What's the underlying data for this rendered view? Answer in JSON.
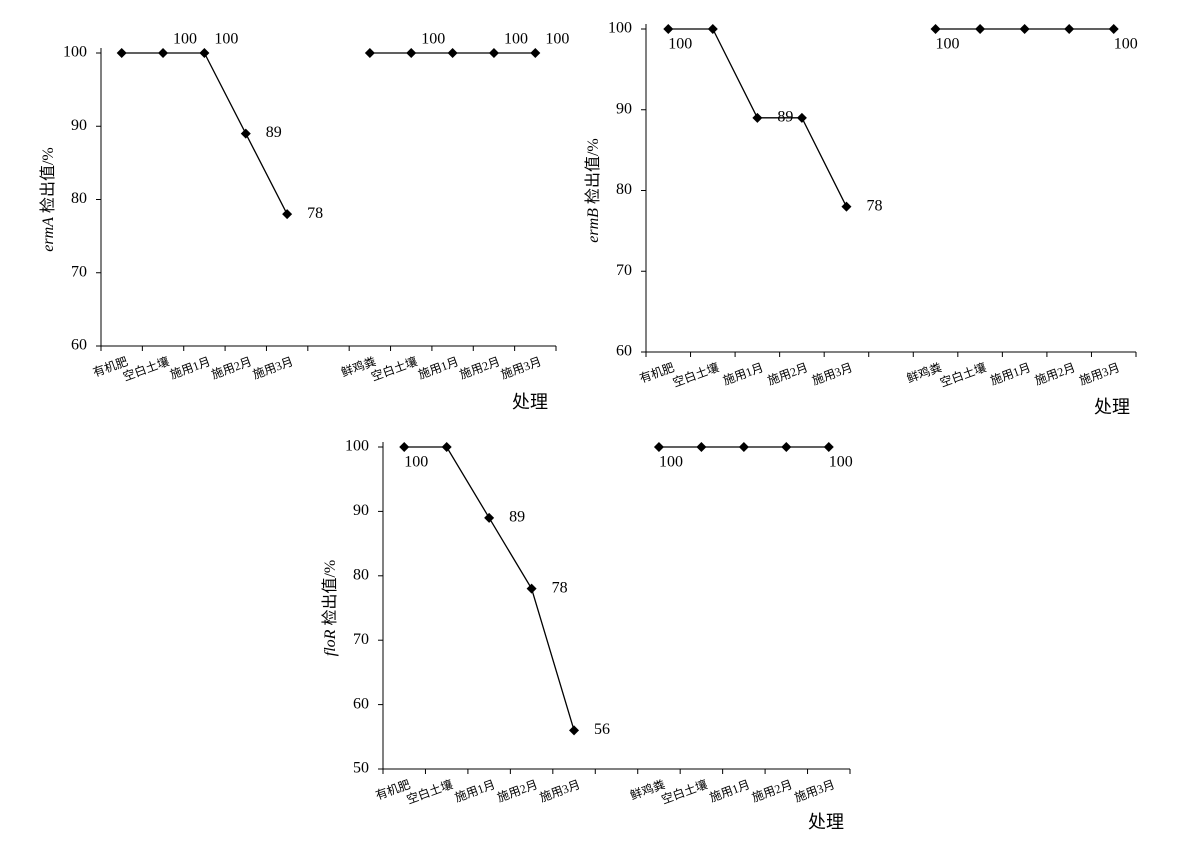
{
  "chart_data": [
    {
      "type": "line",
      "ylabel": {
        "gene": "ermA",
        "text": " 检出值/%"
      },
      "xlabel": "处理",
      "categories": [
        "有机肥",
        "空白土壤",
        "施用1月",
        "施用2月",
        "施用3月",
        null,
        "鲜鸡粪",
        "空白土壤",
        "施用1月",
        "施用2月",
        "施用3月"
      ],
      "series": [
        {
          "color": "#000000",
          "values": [
            100,
            100,
            100,
            89,
            78,
            null,
            100,
            100,
            100,
            100,
            100
          ],
          "value_labels": [
            null,
            "100",
            "100",
            "89",
            "78",
            null,
            null,
            "100",
            null,
            "100",
            "100"
          ]
        }
      ],
      "ylim": [
        60,
        100
      ],
      "yticks": [
        60,
        70,
        80,
        90,
        100
      ]
    },
    {
      "type": "line",
      "ylabel": {
        "gene": "ermB",
        "text": " 检出值/%"
      },
      "xlabel": "处理",
      "categories": [
        "有机肥",
        "空白土壤",
        "施用1月",
        "施用2月",
        "施用3月",
        null,
        "鲜鸡粪",
        "空白土壤",
        "施用1月",
        "施用2月",
        "施用3月"
      ],
      "series": [
        {
          "color": "#000000",
          "values": [
            100,
            100,
            89,
            89,
            78,
            null,
            100,
            100,
            100,
            100,
            100
          ],
          "value_labels": [
            "100",
            null,
            "89",
            null,
            "78",
            null,
            "100",
            null,
            null,
            null,
            "100"
          ]
        }
      ],
      "ylim": [
        60,
        100
      ],
      "yticks": [
        60,
        70,
        80,
        90,
        100
      ]
    },
    {
      "type": "line",
      "ylabel": {
        "gene": "floR",
        "text": " 检出值/%"
      },
      "xlabel": "处理",
      "categories": [
        "有机肥",
        "空白土壤",
        "施用1月",
        "施用2月",
        "施用3月",
        null,
        "鲜鸡粪",
        "空白土壤",
        "施用1月",
        "施用2月",
        "施用3月"
      ],
      "series": [
        {
          "color": "#000000",
          "values": [
            100,
            100,
            89,
            78,
            56,
            null,
            100,
            100,
            100,
            100,
            100
          ],
          "value_labels": [
            "100",
            null,
            "89",
            "78",
            "56",
            null,
            "100",
            null,
            null,
            null,
            "100"
          ]
        }
      ],
      "ylim": [
        50,
        100
      ],
      "yticks": [
        50,
        60,
        70,
        80,
        90,
        100
      ]
    }
  ]
}
